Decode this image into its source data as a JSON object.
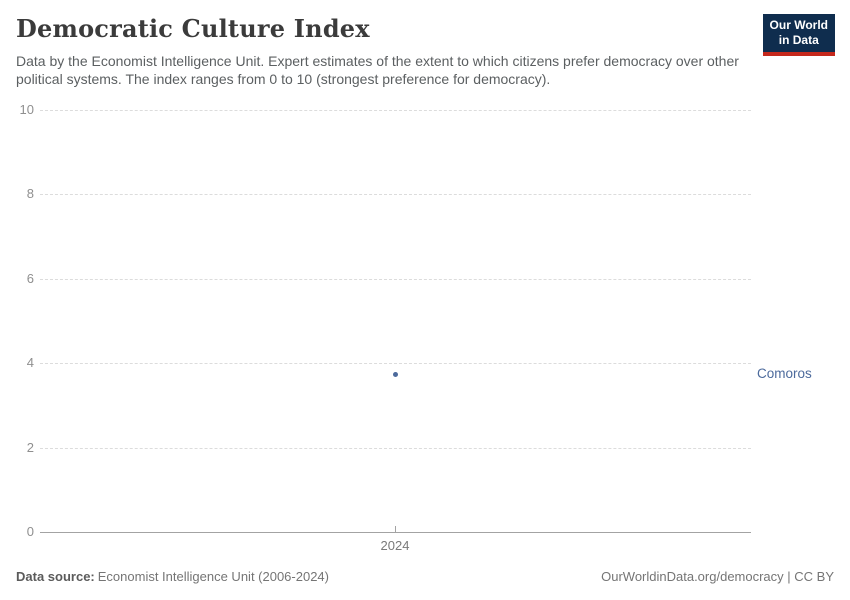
{
  "header": {
    "title": "Democratic Culture Index",
    "subtitle": "Data by the Economist Intelligence Unit. Expert estimates of the extent to which citizens prefer democracy over other political systems. The index ranges from 0 to 10 (strongest preference for democracy)."
  },
  "logo": {
    "line1": "Our World",
    "line2": "in Data"
  },
  "chart_data": {
    "type": "scatter",
    "title": "Democratic Culture Index",
    "xlabel": "",
    "ylabel": "",
    "ylim": [
      0,
      10
    ],
    "y_ticks": [
      0,
      2,
      4,
      6,
      8,
      10
    ],
    "x_ticks": [
      "2024"
    ],
    "grid": "horizontal-dashed",
    "legend_position": "right-of-plot",
    "series": [
      {
        "name": "Comoros",
        "color": "#4c6a9c",
        "x": [
          2024
        ],
        "values": [
          3.75
        ]
      }
    ]
  },
  "footer": {
    "source_label": "Data source:",
    "source_text": "Economist Intelligence Unit (2006-2024)",
    "credit": "OurWorldinData.org/democracy | CC BY"
  },
  "colors": {
    "accent_blue": "#4c6a9c",
    "logo_bg": "#0f2d4e",
    "logo_red": "#c5281c",
    "grid": "#dcdcdc",
    "axis": "#a3a3a3",
    "tick_label": "#8f8f8f",
    "title_text": "#3b3b3b",
    "subtitle_text": "#5b5f61",
    "footer_text": "#757575"
  }
}
